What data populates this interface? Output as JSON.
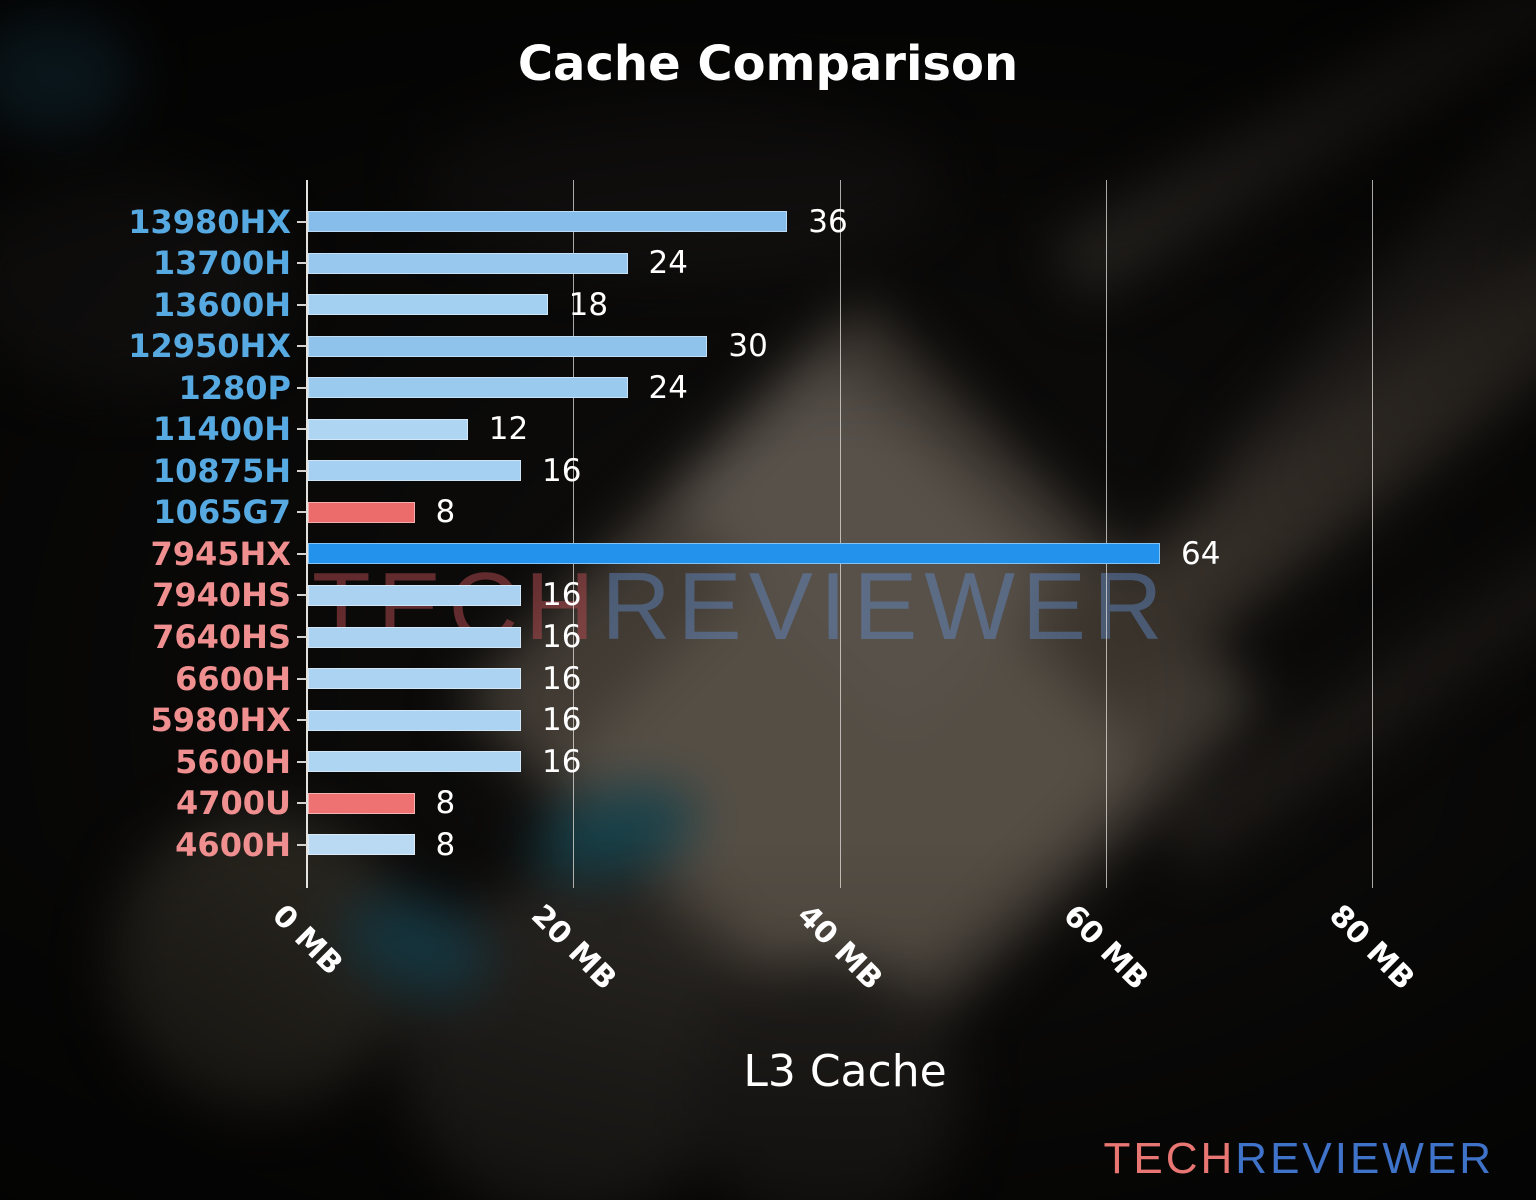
{
  "title_block": {
    "title": "Cache Comparison"
  },
  "watermark": {
    "tech": "TECH",
    "reviewer": "REVIEWER",
    "tech_color": "rgba(186,76,82,0.50)",
    "reviewer_color": "rgba(100,145,215,0.42)"
  },
  "logo": {
    "tech": "TECH",
    "reviewer": "REVIEWER",
    "tech_color": "#e87672",
    "reviewer_color": "#3e73c9"
  },
  "chart_data": {
    "type": "bar",
    "orientation": "horizontal",
    "title": "Cache Comparison",
    "xlabel": "L3 Cache",
    "ylabel": "",
    "xlim": [
      0,
      80
    ],
    "grid": "vertical",
    "legend": "none",
    "x_ticks": [
      "0 MB",
      "20 MB",
      "40 MB",
      "60 MB",
      "80 MB"
    ],
    "x_tick_values": [
      0,
      20,
      40,
      60,
      80
    ],
    "categories": [
      "13980HX",
      "13700H",
      "13600H",
      "12950HX",
      "1280P",
      "11400H",
      "10875H",
      "1065G7",
      "7945HX",
      "7940HS",
      "7640HS",
      "6600H",
      "5980HX",
      "5600H",
      "4700U",
      "4600H"
    ],
    "values": [
      36,
      24,
      18,
      30,
      24,
      12,
      16,
      8,
      64,
      16,
      16,
      16,
      16,
      16,
      8,
      8
    ],
    "bars": [
      {
        "label": "13980HX",
        "value": 36,
        "color": "#87bdea",
        "label_color": "#56a9e1"
      },
      {
        "label": "13700H",
        "value": 24,
        "color": "#98c8ee",
        "label_color": "#56a9e1"
      },
      {
        "label": "13600H",
        "value": 18,
        "color": "#a3cff0",
        "label_color": "#56a9e1"
      },
      {
        "label": "12950HX",
        "value": 30,
        "color": "#8fc3ec",
        "label_color": "#56a9e1"
      },
      {
        "label": "1280P",
        "value": 24,
        "color": "#9acaee",
        "label_color": "#56a9e1"
      },
      {
        "label": "11400H",
        "value": 12,
        "color": "#aed5f2",
        "label_color": "#56a9e1"
      },
      {
        "label": "10875H",
        "value": 16,
        "color": "#a6d0f1",
        "label_color": "#56a9e1"
      },
      {
        "label": "1065G7",
        "value": 8,
        "color": "#ec6b6b",
        "label_color": "#56a9e1"
      },
      {
        "label": "7945HX",
        "value": 64,
        "color": "#2292ec",
        "label_color": "#ef8f8f"
      },
      {
        "label": "7940HS",
        "value": 16,
        "color": "#abd3f1",
        "label_color": "#ef8f8f"
      },
      {
        "label": "7640HS",
        "value": 16,
        "color": "#abd3f1",
        "label_color": "#ef8f8f"
      },
      {
        "label": "6600H",
        "value": 16,
        "color": "#acd3f2",
        "label_color": "#ef8f8f"
      },
      {
        "label": "5980HX",
        "value": 16,
        "color": "#acd4f2",
        "label_color": "#ef8f8f"
      },
      {
        "label": "5600H",
        "value": 16,
        "color": "#aed5f2",
        "label_color": "#ef8f8f"
      },
      {
        "label": "4700U",
        "value": 8,
        "color": "#ee7272",
        "label_color": "#ef8f8f"
      },
      {
        "label": "4600H",
        "value": 8,
        "color": "#badaf4",
        "label_color": "#ef8f8f"
      }
    ]
  }
}
